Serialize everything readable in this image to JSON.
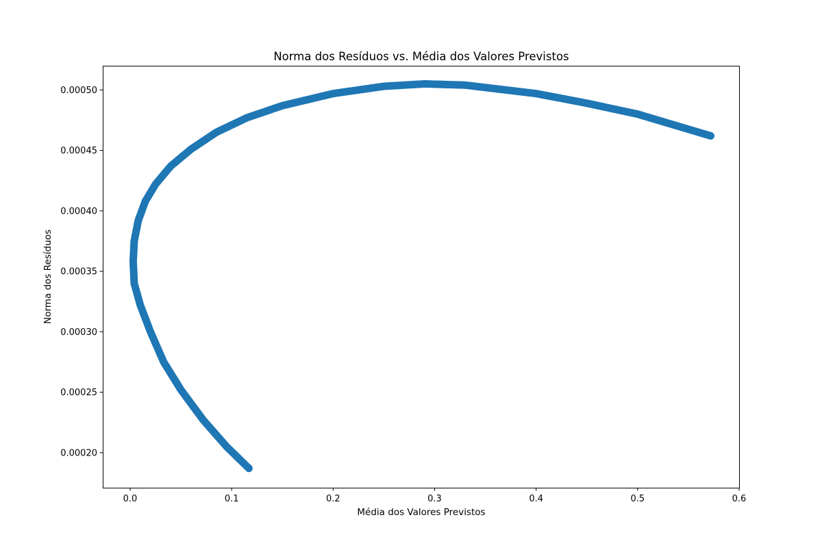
{
  "chart_data": {
    "type": "scatter",
    "title": "Norma dos Resíduos vs. Média dos Valores Previstos",
    "xlabel": "Média dos Valores Previstos",
    "ylabel": "Norma dos Resíduos",
    "xlim": [
      -0.027,
      0.6
    ],
    "ylim": [
      0.000171,
      0.00052
    ],
    "xticks": [
      0.0,
      0.1,
      0.2,
      0.3,
      0.4,
      0.5,
      0.6
    ],
    "xtick_labels": [
      "0.0",
      "0.1",
      "0.2",
      "0.3",
      "0.4",
      "0.5",
      "0.6"
    ],
    "yticks": [
      0.0002,
      0.00025,
      0.0003,
      0.00035,
      0.0004,
      0.00045,
      0.0005
    ],
    "ytick_labels": [
      "0.00020",
      "0.00025",
      "0.00030",
      "0.00035",
      "0.00040",
      "0.00045",
      "0.00050"
    ],
    "grid": false,
    "legend": "none",
    "marker_color": "#1f77b4",
    "series": [
      {
        "points": [
          {
            "x": 0.117,
            "y": 0.000187
          },
          {
            "x": 0.095,
            "y": 0.000205
          },
          {
            "x": 0.072,
            "y": 0.000227
          },
          {
            "x": 0.05,
            "y": 0.000252
          },
          {
            "x": 0.033,
            "y": 0.000275
          },
          {
            "x": 0.02,
            "y": 0.0003
          },
          {
            "x": 0.01,
            "y": 0.000322
          },
          {
            "x": 0.004,
            "y": 0.00034
          },
          {
            "x": 0.003,
            "y": 0.000358
          },
          {
            "x": 0.004,
            "y": 0.000375
          },
          {
            "x": 0.008,
            "y": 0.000392
          },
          {
            "x": 0.015,
            "y": 0.000408
          },
          {
            "x": 0.025,
            "y": 0.000422
          },
          {
            "x": 0.04,
            "y": 0.000437
          },
          {
            "x": 0.06,
            "y": 0.000451
          },
          {
            "x": 0.085,
            "y": 0.000465
          },
          {
            "x": 0.115,
            "y": 0.000477
          },
          {
            "x": 0.15,
            "y": 0.000487
          },
          {
            "x": 0.2,
            "y": 0.000497
          },
          {
            "x": 0.25,
            "y": 0.000503
          },
          {
            "x": 0.29,
            "y": 0.000505
          },
          {
            "x": 0.33,
            "y": 0.000504
          },
          {
            "x": 0.4,
            "y": 0.000497
          },
          {
            "x": 0.45,
            "y": 0.000489
          },
          {
            "x": 0.5,
            "y": 0.00048
          },
          {
            "x": 0.54,
            "y": 0.00047
          },
          {
            "x": 0.572,
            "y": 0.000462
          }
        ]
      }
    ]
  }
}
